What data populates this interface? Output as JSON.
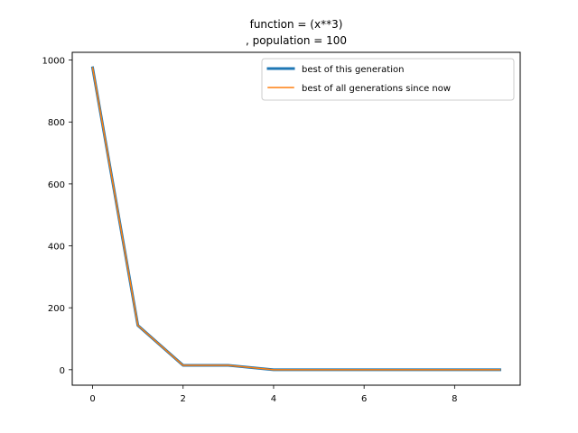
{
  "chart_data": {
    "type": "line",
    "title_lines": [
      "function =  (x**3)",
      ", population = 100"
    ],
    "xlabel": "",
    "ylabel": "",
    "x": [
      0,
      1,
      2,
      3,
      4,
      5,
      6,
      7,
      8,
      9
    ],
    "xlim": [
      -0.45,
      9.45
    ],
    "ylim": [
      -50,
      1025
    ],
    "xticks": [
      0,
      2,
      4,
      6,
      8
    ],
    "yticks": [
      0,
      200,
      400,
      600,
      800,
      1000
    ],
    "grid": false,
    "legend_position": "top-right",
    "series": [
      {
        "name": "best of this generation",
        "values": [
          975,
          143,
          14,
          14,
          0,
          0,
          0,
          0,
          0,
          0
        ],
        "color": "#1f77b4",
        "line_width": 3
      },
      {
        "name": "best of all generations since now",
        "values": [
          975,
          143,
          14,
          14,
          0,
          0,
          0,
          0,
          0,
          0
        ],
        "color": "#ff7f0e",
        "line_width": 1.5
      }
    ]
  }
}
